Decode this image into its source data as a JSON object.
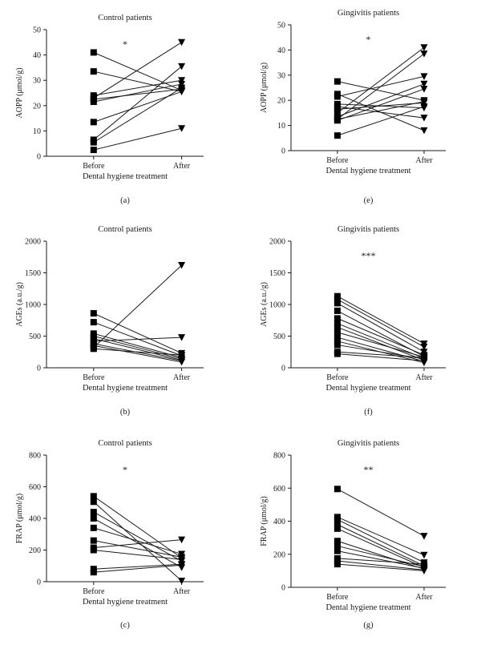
{
  "chart_data": [
    {
      "panel_label": "(a)",
      "type": "line",
      "title": "Control patients",
      "xlabel": "Dental hygiene treatment",
      "ylabel": "AOPP (μmol/g)",
      "categories": [
        "Before",
        "After"
      ],
      "ylim": [
        0,
        50
      ],
      "yticks": [
        0,
        10,
        20,
        30,
        40,
        50
      ],
      "significance": "*",
      "pairs": [
        [
          41,
          26
        ],
        [
          33.5,
          25.5
        ],
        [
          24,
          30
        ],
        [
          22.5,
          26.5
        ],
        [
          21.5,
          28.5
        ],
        [
          13.5,
          25.5
        ],
        [
          6.5,
          35.5
        ],
        [
          5.5,
          27
        ],
        [
          2.5,
          11
        ],
        [
          23,
          45
        ]
      ]
    },
    {
      "panel_label": "(e)",
      "type": "line",
      "title": "Gingivitis patients",
      "xlabel": "Dental hygiene treatment",
      "ylabel": "AOPP (μmol/g)",
      "categories": [
        "Before",
        "After"
      ],
      "ylim": [
        0,
        50
      ],
      "yticks": [
        0,
        10,
        20,
        30,
        40,
        50
      ],
      "significance": "*",
      "pairs": [
        [
          27.5,
          20
        ],
        [
          22.5,
          8
        ],
        [
          21.5,
          29.5
        ],
        [
          18.5,
          17
        ],
        [
          17.5,
          13
        ],
        [
          16.5,
          19
        ],
        [
          15,
          41
        ],
        [
          13.5,
          26.5
        ],
        [
          12.5,
          38.5
        ],
        [
          12,
          24.5
        ],
        [
          6,
          17.5
        ],
        [
          12.5,
          19.5
        ]
      ]
    },
    {
      "panel_label": "(b)",
      "type": "line",
      "title": "Control patients",
      "xlabel": "Dental hygiene treatment",
      "ylabel": "AGEs (a.u./g)",
      "categories": [
        "Before",
        "After"
      ],
      "ylim": [
        0,
        2000
      ],
      "yticks": [
        0,
        500,
        1000,
        1500,
        2000
      ],
      "significance": "",
      "pairs": [
        [
          860,
          230
        ],
        [
          720,
          190
        ],
        [
          540,
          160
        ],
        [
          500,
          140
        ],
        [
          460,
          120
        ],
        [
          420,
          480
        ],
        [
          380,
          110
        ],
        [
          350,
          90
        ],
        [
          320,
          1620
        ],
        [
          300,
          200
        ]
      ]
    },
    {
      "panel_label": "(f)",
      "type": "line",
      "title": "Gingivitis patients",
      "xlabel": "Dental hygiene treatment",
      "ylabel": "AGEs (a.u./g)",
      "categories": [
        "Before",
        "After"
      ],
      "ylim": [
        0,
        2000
      ],
      "yticks": [
        0,
        500,
        1000,
        1500,
        2000
      ],
      "significance": "***",
      "pairs": [
        [
          1130,
          380
        ],
        [
          1080,
          330
        ],
        [
          1020,
          250
        ],
        [
          900,
          180
        ],
        [
          780,
          200
        ],
        [
          700,
          150
        ],
        [
          640,
          120
        ],
        [
          560,
          170
        ],
        [
          480,
          100
        ],
        [
          420,
          80
        ],
        [
          360,
          140
        ],
        [
          250,
          160
        ],
        [
          220,
          110
        ]
      ]
    },
    {
      "panel_label": "(c)",
      "type": "line",
      "title": "Control patients",
      "xlabel": "Dental hygiene treatment",
      "ylabel": "FRAP (μmol/g)",
      "categories": [
        "Before",
        "After"
      ],
      "ylim": [
        0,
        800
      ],
      "yticks": [
        0,
        200,
        400,
        600,
        800
      ],
      "significance": "*",
      "pairs": [
        [
          540,
          150
        ],
        [
          505,
          5
        ],
        [
          440,
          130
        ],
        [
          400,
          90
        ],
        [
          340,
          175
        ],
        [
          260,
          155
        ],
        [
          215,
          265
        ],
        [
          200,
          140
        ],
        [
          80,
          110
        ],
        [
          60,
          105
        ]
      ]
    },
    {
      "panel_label": "(g)",
      "type": "line",
      "title": "Gingivitis patients",
      "xlabel": "Dental hygiene treatment",
      "ylabel": "FRAP (μmol/g)",
      "categories": [
        "Before",
        "After"
      ],
      "ylim": [
        0,
        800
      ],
      "yticks": [
        0,
        200,
        400,
        600,
        800
      ],
      "significance": "**",
      "pairs": [
        [
          595,
          310
        ],
        [
          425,
          195
        ],
        [
          410,
          150
        ],
        [
          380,
          130
        ],
        [
          355,
          120
        ],
        [
          280,
          110
        ],
        [
          250,
          125
        ],
        [
          220,
          115
        ],
        [
          175,
          140
        ],
        [
          160,
          105
        ],
        [
          140,
          100
        ]
      ]
    }
  ]
}
